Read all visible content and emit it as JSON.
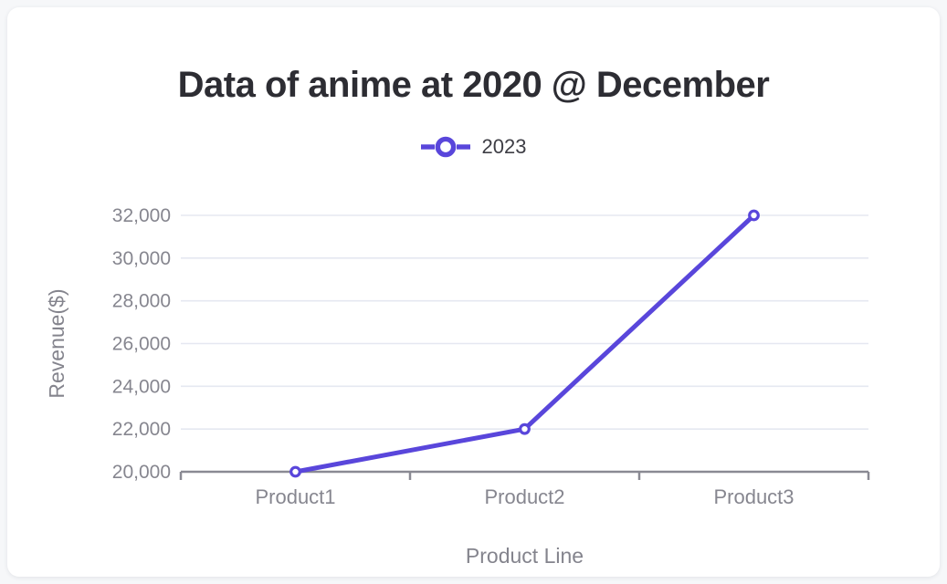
{
  "title": "Data of anime at 2020 @ December",
  "legend": {
    "items": [
      {
        "label": "2023"
      }
    ]
  },
  "colors": {
    "accent": "#5946db",
    "page_bg": "#f6f7f9",
    "card_bg": "#ffffff",
    "grid": "#e5e8f1",
    "axis": "#8a8a93",
    "tick_text": "#86868f",
    "axis_title_text": "#84848d",
    "title_text": "#2d2d33",
    "legend_text": "#3e3e45",
    "marker_fill": "#ffffff"
  },
  "chart_data": {
    "type": "line",
    "title": "Data of anime at 2020 @ December",
    "categories": [
      "Product1",
      "Product2",
      "Product3"
    ],
    "series": [
      {
        "name": "2023",
        "values": [
          20000,
          22000,
          32000
        ]
      }
    ],
    "xlabel": "Product Line",
    "ylabel": "Revenue($)",
    "ylim": [
      20000,
      32000
    ],
    "ytick_step": 2000,
    "ytick_labels": [
      "20,000",
      "22,000",
      "24,000",
      "26,000",
      "28,000",
      "30,000",
      "32,000"
    ],
    "grid": true,
    "legend_position": "top-center",
    "marker_style": "open-circle"
  }
}
